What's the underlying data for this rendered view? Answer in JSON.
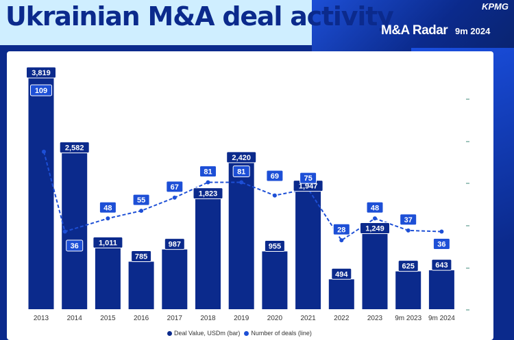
{
  "header": {
    "title": "Ukrainian M&A deal activity",
    "brand": "KPMG",
    "subtitle": "M&A Radar",
    "period": "9m 2024"
  },
  "colors": {
    "bar": "#0b2a8c",
    "line": "#1d4fd6",
    "header_bg": "#cfeeff"
  },
  "chart_data": {
    "type": "bar",
    "categories": [
      "2013",
      "2014",
      "2015",
      "2016",
      "2017",
      "2018",
      "2019",
      "2020",
      "2021",
      "2022",
      "2023",
      "9m 2023",
      "9m 2024"
    ],
    "series": [
      {
        "name": "Deal Value, USDm (bar)",
        "type": "bar",
        "values": [
          3819,
          2582,
          1011,
          785,
          987,
          1823,
          2420,
          955,
          1947,
          494,
          1249,
          625,
          643
        ],
        "labels": [
          "3,819",
          "2,582",
          "1,011",
          "785",
          "987",
          "1,823",
          "2,420",
          "955",
          "1,947",
          "494",
          "1,249",
          "625",
          "643"
        ]
      },
      {
        "name": "Number of deals (line)",
        "type": "line",
        "values": [
          109,
          36,
          48,
          55,
          67,
          81,
          81,
          69,
          75,
          28,
          48,
          37,
          36
        ],
        "labels": [
          "109",
          "36",
          "48",
          "55",
          "67",
          "81",
          "81",
          "69",
          "75",
          "28",
          "48",
          "37",
          "36"
        ]
      }
    ],
    "legend_position": "bottom",
    "grid": false
  },
  "legend": {
    "bar_label": "Deal Value, USDm (bar)",
    "line_label": "Number of deals (line)"
  }
}
